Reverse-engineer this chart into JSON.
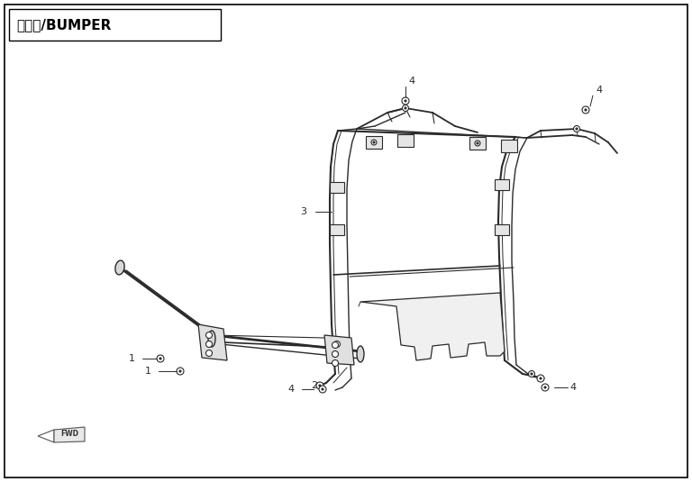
{
  "title": "保险杠/BUMPER",
  "bg_color": "#ffffff",
  "line_color": "#2a2a2a",
  "fig_width": 7.68,
  "fig_height": 5.35,
  "dpi": 100
}
